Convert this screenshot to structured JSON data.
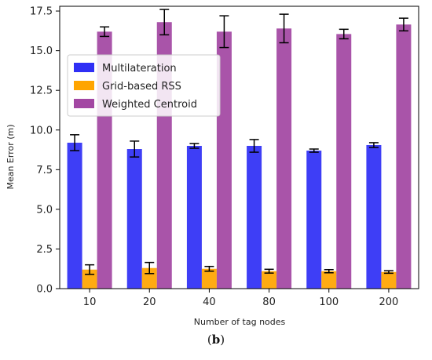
{
  "chart_data": {
    "type": "bar",
    "xlabel": "Number of tag nodes",
    "ylabel": "Mean Error (m)",
    "categories": [
      "10",
      "20",
      "40",
      "80",
      "100",
      "200"
    ],
    "ylim": [
      0,
      17.8
    ],
    "yticks": [
      "0.0",
      "2.5",
      "5.0",
      "7.5",
      "10.0",
      "12.5",
      "15.0",
      "17.5"
    ],
    "series": [
      {
        "name": "Multilateration",
        "color": "#2f2ff5",
        "values": [
          9.2,
          8.8,
          9.0,
          9.0,
          8.7,
          9.05
        ],
        "errors": [
          0.5,
          0.5,
          0.15,
          0.4,
          0.1,
          0.15
        ]
      },
      {
        "name": "Grid-based RSS",
        "color": "#ffa500",
        "values": [
          1.2,
          1.3,
          1.25,
          1.1,
          1.1,
          1.05
        ],
        "errors": [
          0.3,
          0.35,
          0.15,
          0.12,
          0.1,
          0.08
        ]
      },
      {
        "name": "Weighted Centroid",
        "color": "#a347a3",
        "values": [
          16.2,
          16.8,
          16.2,
          16.4,
          16.05,
          16.65
        ],
        "errors": [
          0.3,
          0.8,
          1.0,
          0.9,
          0.3,
          0.4
        ]
      }
    ],
    "legend": "upper-left",
    "grid": false
  },
  "caption": {
    "open": "(",
    "label": "b",
    "close": ")"
  }
}
